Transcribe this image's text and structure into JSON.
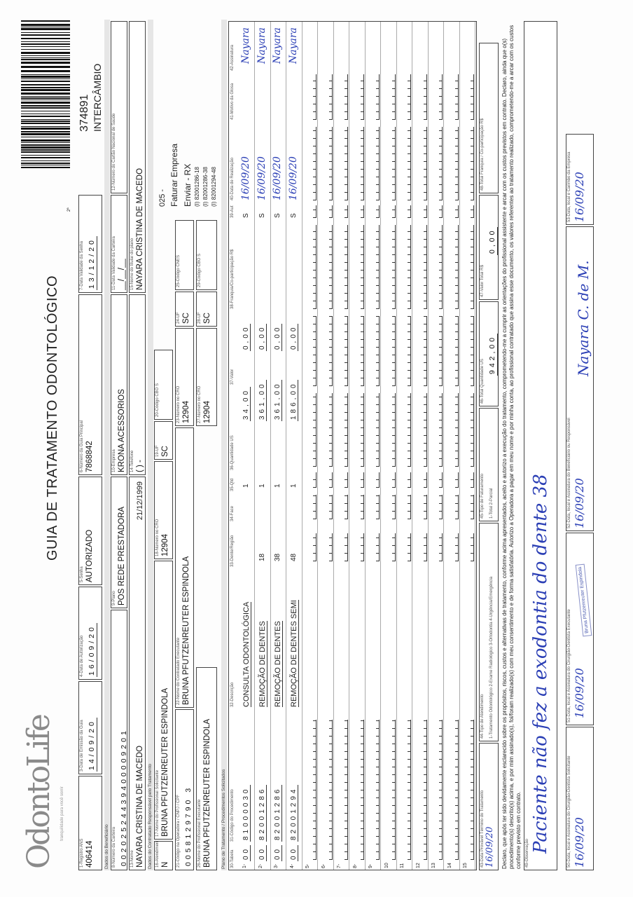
{
  "header": {
    "logo": "OdontoLife",
    "tagline": "tranquilidade para você sorrir",
    "title": "GUIA DE TRATAMENTO ODONTOLÓGICO",
    "page_mark": "2ª",
    "guia_number": "374891",
    "guia_type": "INTERCÂMBIO"
  },
  "fields": {
    "f1": {
      "label": "1-Registro ANS",
      "value": "406414"
    },
    "f3": {
      "label": "3-Data de Emissão da Guia",
      "value": "14/09/20"
    },
    "f4": {
      "label": "4-Data de Autorização",
      "value": "16/09/20"
    },
    "f5": {
      "label": "5-Senha",
      "value": "AUTORIZADO"
    },
    "f6": {
      "label": "6-Número da Guia Principal",
      "value": "7868842"
    },
    "f7": {
      "label": "7-Data Validade da Senha",
      "value": "13/12/20"
    },
    "f8": {
      "label": "8-Número da Carteira",
      "value": "00202524439400009201"
    },
    "f9": {
      "label": "9-Plano",
      "value": "POS REDE PRESTADORA"
    },
    "f10": {
      "label": "10-Empresa",
      "value": "KRONA ACESSORIOS"
    },
    "f11": {
      "label": "11-Data Validade da Carteira",
      "value": "__/__/__"
    },
    "f12": {
      "label": "12-Número do Cartão Nacional de Saúde",
      "value": ""
    },
    "f13": {
      "label": "13-Nome",
      "value": "NAYARA CRISTINA DE MACEDO",
      "birth": "21/12/1999"
    },
    "f14": {
      "label": "14-Telefone",
      "value": "(   )          -"
    },
    "f15": {
      "label": "15-Nome do titular do plano",
      "value": "NAYARA CRISTINA DE MACEDO"
    },
    "f16": {
      "label": "16-Atendimento a RN",
      "value": "N"
    },
    "f17": {
      "label": "17-Nome do Profissional Solicitante",
      "value": "BRUNA PFUTZENREUTER ESPINDOLA"
    },
    "f18": {
      "label": "18-Número no CRO",
      "value": "12904"
    },
    "f19": {
      "label": "19-UF",
      "value": "SC"
    },
    "f20": {
      "label": "20-Código CBO S",
      "value": ""
    },
    "f21": {
      "label": "21-Código na Operadora / CNPJ / CPF",
      "value": "0058129790 3"
    },
    "f22": {
      "label": "22-Nome do Contratado Executante",
      "value": "BRUNA PFUTZENREUTER ESPINDOLA"
    },
    "f23": {
      "label": "23-Número no CRO",
      "value": "12904"
    },
    "f24": {
      "label": "24-UF",
      "value": "SC"
    },
    "f25": {
      "label": "25-Código CNES",
      "value": ""
    },
    "f26": {
      "label": "26-Nome do Profissional Executante",
      "value": "BRUNA PFUTZENREUTER ESPINDOLA"
    },
    "f27": {
      "label": "27-Número no CRO",
      "value": "12904"
    },
    "f28": {
      "label": "28-UF",
      "value": "SC"
    },
    "f29": {
      "label": "29-Código CBO S",
      "value": ""
    }
  },
  "notes": {
    "n1": "025 -",
    "n2": "Faturar Empresa",
    "n3": "Enviar - RX",
    "n4": "(I) 82001286-18",
    "n5": "(I) 82001286-38",
    "n6": "(I) 82001294-48"
  },
  "sections": {
    "beneficiario": "Dados do Beneficiário",
    "contratado": "Dados do Contratado Responsável pelo Tratamento",
    "plano": "Plano de Tratamento / Procedimentos Solicitados"
  },
  "table": {
    "headers": [
      "30-Tabela",
      "31-Código do Procedimento",
      "32-Descrição",
      "33-Dente/Região",
      "34-Face",
      "35-Qtd",
      "36-Quantidade US",
      "37-Valor",
      "38-Franquia/Co-participação R$",
      "39-Aut",
      "40-Data de Realização",
      "41-Motivo da Glosa",
      "42-Assinatura"
    ],
    "rows": [
      {
        "n": "1-",
        "tabela": "00",
        "codigo": "81000030",
        "desc": "CONSULTA ODONTOLÓGICA",
        "dente": "",
        "face": "",
        "qtd": "1",
        "us": "34,00",
        "valor": "0,00",
        "franquia": "",
        "aut": "S",
        "data": "16/09/20",
        "glosa": "",
        "assinatura": "Nayara"
      },
      {
        "n": "2-",
        "tabela": "00",
        "codigo": "82001286",
        "desc": "REMOÇÃO DE DENTES",
        "dente": "18",
        "face": "",
        "qtd": "1",
        "us": "361,00",
        "valor": "0,00",
        "franquia": "",
        "aut": "S",
        "data": "16/09/20",
        "glosa": "",
        "assinatura": "Nayara"
      },
      {
        "n": "3-",
        "tabela": "00",
        "codigo": "82001286",
        "desc": "REMOÇÃO DE DENTES",
        "dente": "38",
        "face": "",
        "qtd": "1",
        "us": "361,00",
        "valor": "0,00",
        "franquia": "",
        "aut": "S",
        "data": "16/09/20",
        "glosa": "",
        "assinatura": "Nayara"
      },
      {
        "n": "4-",
        "tabela": "00",
        "codigo": "82001294",
        "desc": "REMOÇÃO DE DENTES SEMI",
        "dente": "48",
        "face": "",
        "qtd": "1",
        "us": "186,00",
        "valor": "0,00",
        "franquia": "",
        "aut": "S",
        "data": "16/09/20",
        "glosa": "",
        "assinatura": "Nayara"
      },
      {
        "n": "5-"
      },
      {
        "n": "6-"
      },
      {
        "n": "7-"
      },
      {
        "n": "8-"
      },
      {
        "n": "9-"
      },
      {
        "n": "10"
      },
      {
        "n": "11"
      },
      {
        "n": "12"
      },
      {
        "n": "13"
      },
      {
        "n": "14"
      },
      {
        "n": "15"
      }
    ]
  },
  "totals": {
    "f43": {
      "label": "43-Data Provável Término do Tratamento",
      "value": "16/09/20"
    },
    "f44": {
      "label": "44-Tipo de Atendimento",
      "value": "1-Tratamento Odontológico 2-Exame Radiológico 3-Ortodontia 4-Urgência/Emergência"
    },
    "f45": {
      "label": "45-Tipo de Faturamento",
      "value": "1-Total 2-Parcial"
    },
    "f46": {
      "label": "46-Total Quantidade US",
      "value": "942,00"
    },
    "f47": {
      "label": "47-Valor Total R$",
      "value": "0,00"
    },
    "f48": {
      "label": "48-Total Franquia / Co-participação R$",
      "value": ""
    }
  },
  "declaration": "Declaro, que após ter sido devidamente esclarecido sobre os propósitos, riscos, custos e alternativas de tratamento, conforme acima apresentados, aceito e autorizo a execução do tratamento, comprometendo-me a cumprir as orientações do profissional assistente e arcar com os custos previstos em contrato. Declaro, ainda que o(s) procedimento(s) descrito(s) acima, e por mim assinado(s), foi/foram realizado(s) com meu consentimento e de forma satisfatória. Autorizo a Operadora a pagar em meu nome e por minha conta, ao profissional contratado que assina esse documento, os valores referentes ao tratamento realizado, comprometendo-me a arcar com os custos conforme previsto em contrato.",
  "observation": {
    "label": "49-Observação",
    "value": "Paciente não fez a exodontia do dente 38"
  },
  "signatures": {
    "f50": {
      "label": "50-Data, local e Assinatura do Cirurgião-Dentista Solicitante",
      "date": "16/09/20"
    },
    "f51": {
      "label": "51-Data, local e Assinatura do Cirurgião-Dentista Executante",
      "date": "16/09/20"
    },
    "f52": {
      "label": "52-Data, local e Assinatura do Beneficiário ou Responsável",
      "date": "16/09/20",
      "signature": "Nayara C. de M."
    },
    "f53": {
      "label": "53-Data, local e Carimbo da Empresa",
      "date": "16/09/20"
    }
  },
  "stamp": "Bruna Pfutzenreuter Espindola"
}
